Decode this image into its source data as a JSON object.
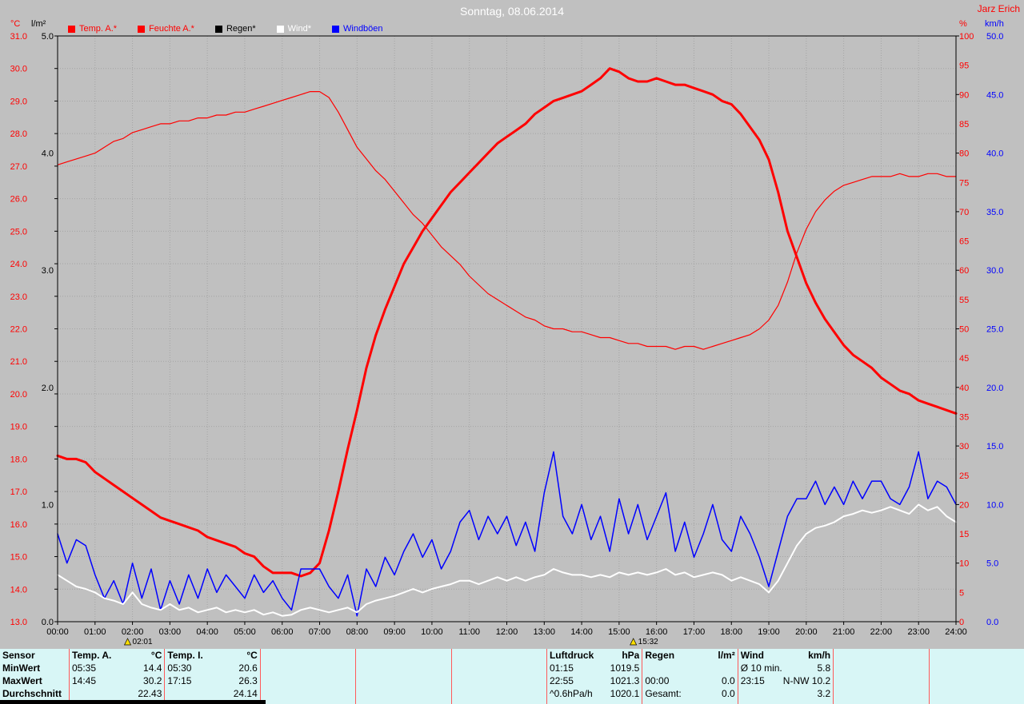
{
  "header": {
    "title": "Sonntag, 08.06.2014",
    "station_user": "Jarz Erich"
  },
  "units": {
    "left_primary": "°C",
    "left_secondary": "l/m²",
    "right_primary": "%",
    "right_secondary": "km/h"
  },
  "legend": [
    {
      "label": "Temp. A.*",
      "color": "#ff0000",
      "text_color": "#ff0000"
    },
    {
      "label": "Feuchte A.*",
      "color": "#ff0000",
      "text_color": "#ff0000"
    },
    {
      "label": "Regen*",
      "color": "#000000",
      "text_color": "#000000"
    },
    {
      "label": "Wind*",
      "color": "#ffffff",
      "text_color": "#ffffff"
    },
    {
      "label": "Windböen",
      "color": "#0000ff",
      "text_color": "#0000ff"
    }
  ],
  "markers": [
    {
      "time": "02:01",
      "hour": 2.02
    },
    {
      "time": "15:32",
      "hour": 15.53
    }
  ],
  "chart_data": {
    "type": "line",
    "title": "Sonntag, 08.06.2014",
    "x_range_hours": [
      0,
      24
    ],
    "x_step_hours": 0.25,
    "x_tick_labels": [
      "00:00",
      "01:00",
      "02:00",
      "03:00",
      "04:00",
      "05:00",
      "06:00",
      "07:00",
      "08:00",
      "09:00",
      "10:00",
      "11:00",
      "12:00",
      "13:00",
      "14:00",
      "15:00",
      "16:00",
      "17:00",
      "18:00",
      "19:00",
      "20:00",
      "21:00",
      "22:00",
      "23:00",
      "24:00"
    ],
    "axes": {
      "temp": {
        "unit": "°C",
        "min": 13,
        "max": 31,
        "step": 1,
        "decimals": 1,
        "color": "#ff0000"
      },
      "rain": {
        "unit": "l/m²",
        "min": 0,
        "max": 5,
        "step": 1,
        "decimals": 1,
        "color": "#000000"
      },
      "hum": {
        "unit": "%",
        "min": 0,
        "max": 100,
        "step": 5,
        "decimals": 0,
        "color": "#ff0000"
      },
      "wind": {
        "unit": "km/h",
        "min": 0,
        "max": 50,
        "step": 5,
        "decimals": 1,
        "color": "#0000ff"
      }
    },
    "series": [
      {
        "name": "Temp. A.",
        "axis": "temp",
        "color": "#ff0000",
        "width": 3,
        "z": 3,
        "values": [
          18.1,
          18.0,
          18.0,
          17.9,
          17.6,
          17.4,
          17.2,
          17.0,
          16.8,
          16.6,
          16.4,
          16.2,
          16.1,
          16.0,
          15.9,
          15.8,
          15.6,
          15.5,
          15.4,
          15.3,
          15.1,
          15.0,
          14.7,
          14.5,
          14.5,
          14.5,
          14.4,
          14.5,
          14.8,
          15.8,
          17.0,
          18.3,
          19.5,
          20.8,
          21.8,
          22.6,
          23.3,
          24.0,
          24.5,
          25.0,
          25.4,
          25.8,
          26.2,
          26.5,
          26.8,
          27.1,
          27.4,
          27.7,
          27.9,
          28.1,
          28.3,
          28.6,
          28.8,
          29.0,
          29.1,
          29.2,
          29.3,
          29.5,
          29.7,
          30.0,
          29.9,
          29.7,
          29.6,
          29.6,
          29.7,
          29.6,
          29.5,
          29.5,
          29.4,
          29.3,
          29.2,
          29.0,
          28.9,
          28.6,
          28.2,
          27.8,
          27.2,
          26.2,
          25.0,
          24.2,
          23.4,
          22.8,
          22.3,
          21.9,
          21.5,
          21.2,
          21.0,
          20.8,
          20.5,
          20.3,
          20.1,
          20.0,
          19.8,
          19.7,
          19.6,
          19.5,
          19.4
        ]
      },
      {
        "name": "Feuchte A.",
        "axis": "hum",
        "color": "#ff0000",
        "width": 1.2,
        "z": 2,
        "values": [
          78,
          78.5,
          79,
          79.5,
          80,
          81,
          82,
          82.5,
          83.5,
          84,
          84.5,
          85,
          85,
          85.5,
          85.5,
          86,
          86,
          86.5,
          86.5,
          87,
          87,
          87.5,
          88,
          88.5,
          89,
          89.5,
          90,
          90.5,
          90.5,
          89.5,
          87,
          84,
          81,
          79,
          77,
          75.5,
          73.5,
          71.5,
          69.5,
          68,
          66,
          64,
          62.5,
          61,
          59,
          57.5,
          56,
          55,
          54,
          53,
          52,
          51.5,
          50.5,
          50,
          50,
          49.5,
          49.5,
          49,
          48.5,
          48.5,
          48,
          47.5,
          47.5,
          47,
          47,
          47,
          46.5,
          47,
          47,
          46.5,
          47,
          47.5,
          48,
          48.5,
          49,
          50,
          51.5,
          54,
          58,
          63,
          67,
          70,
          72,
          73.5,
          74.5,
          75,
          75.5,
          76,
          76,
          76,
          76.5,
          76,
          76,
          76.5,
          76.5,
          76,
          76
        ]
      },
      {
        "name": "Regen",
        "axis": "rain",
        "color": "#000000",
        "width": 1,
        "z": 1,
        "values": [
          0,
          0,
          0,
          0,
          0,
          0,
          0,
          0,
          0,
          0,
          0,
          0,
          0,
          0,
          0,
          0,
          0,
          0,
          0,
          0,
          0,
          0,
          0,
          0,
          0,
          0,
          0,
          0,
          0,
          0,
          0,
          0,
          0,
          0,
          0,
          0,
          0,
          0,
          0,
          0,
          0,
          0,
          0,
          0,
          0,
          0,
          0,
          0,
          0,
          0,
          0,
          0,
          0,
          0,
          0,
          0,
          0,
          0,
          0,
          0,
          0,
          0,
          0,
          0,
          0,
          0,
          0,
          0,
          0,
          0,
          0,
          0,
          0,
          0,
          0,
          0,
          0,
          0,
          0,
          0,
          0,
          0,
          0,
          0,
          0,
          0,
          0,
          0,
          0,
          0,
          0,
          0,
          0,
          0,
          0,
          0,
          0
        ]
      },
      {
        "name": "Wind",
        "axis": "wind",
        "color": "#ffffff",
        "width": 2,
        "z": 5,
        "values": [
          4,
          3.5,
          3,
          2.8,
          2.5,
          2,
          1.8,
          1.5,
          2.5,
          1.5,
          1.2,
          1,
          1.5,
          1,
          1.2,
          0.8,
          1,
          1.2,
          0.8,
          1,
          0.8,
          1,
          0.6,
          0.8,
          0.5,
          0.6,
          1,
          1.2,
          1,
          0.8,
          1,
          1.2,
          0.8,
          1.5,
          1.8,
          2,
          2.2,
          2.5,
          2.8,
          2.5,
          2.8,
          3,
          3.2,
          3.5,
          3.5,
          3.2,
          3.5,
          3.8,
          3.5,
          3.8,
          3.5,
          3.8,
          4,
          4.5,
          4.2,
          4,
          4,
          3.8,
          4,
          3.8,
          4.2,
          4,
          4.2,
          4,
          4.2,
          4.5,
          4,
          4.2,
          3.8,
          4,
          4.2,
          4,
          3.5,
          3.8,
          3.5,
          3.2,
          2.5,
          3.5,
          5,
          6.5,
          7.5,
          8,
          8.2,
          8.5,
          9,
          9.2,
          9.5,
          9.3,
          9.5,
          9.8,
          9.5,
          9.2,
          10,
          9.5,
          9.8,
          9,
          8.5
        ]
      },
      {
        "name": "Windböen",
        "axis": "wind",
        "color": "#0000ff",
        "width": 1.5,
        "z": 4,
        "values": [
          7.5,
          5,
          7,
          6.5,
          4,
          2,
          3.5,
          1.5,
          5,
          2,
          4.5,
          1,
          3.5,
          1.5,
          4,
          2,
          4.5,
          2.5,
          4,
          3,
          2,
          4,
          2.5,
          3.5,
          2,
          1,
          4.5,
          4.5,
          4.5,
          3,
          2,
          4,
          0.5,
          4.5,
          3,
          5.5,
          4,
          6,
          7.5,
          5.5,
          7,
          4.5,
          6,
          8.5,
          9.5,
          7,
          9,
          7.5,
          9,
          6.5,
          8.5,
          6,
          11,
          14.5,
          9,
          7.5,
          10,
          7,
          9,
          6,
          10.5,
          7.5,
          10,
          7,
          9,
          11,
          6,
          8.5,
          5.5,
          7.5,
          10,
          7,
          6,
          9,
          7.5,
          5.5,
          3,
          6,
          9,
          10.5,
          10.5,
          12,
          10,
          11.5,
          10,
          12,
          10.5,
          12,
          12,
          10.5,
          10,
          11.5,
          14.5,
          10.5,
          12,
          11.5,
          10
        ]
      }
    ]
  },
  "table": {
    "row_headers": [
      "Sensor",
      "MinWert",
      "MaxWert",
      "Durchschnitt"
    ],
    "groups": [
      {
        "name": "Temp. A.",
        "unit": "°C",
        "rows": [
          [
            "05:35",
            "14.4"
          ],
          [
            "14:45",
            "30.2"
          ],
          [
            "",
            "22.43"
          ]
        ]
      },
      {
        "name": "Temp. I.",
        "unit": "°C",
        "rows": [
          [
            "05:30",
            "20.6"
          ],
          [
            "17:15",
            "26.3"
          ],
          [
            "",
            "24.14"
          ]
        ]
      },
      {
        "name": "",
        "unit": "",
        "rows": [
          [
            "",
            ""
          ],
          [
            "",
            ""
          ],
          [
            "",
            ""
          ]
        ]
      },
      {
        "name": "",
        "unit": "",
        "rows": [
          [
            "",
            ""
          ],
          [
            "",
            ""
          ],
          [
            "",
            ""
          ]
        ]
      },
      {
        "name": "",
        "unit": "",
        "rows": [
          [
            "",
            ""
          ],
          [
            "",
            ""
          ],
          [
            "",
            ""
          ]
        ]
      },
      {
        "name": "Luftdruck",
        "unit": "hPa",
        "rows": [
          [
            "01:15",
            "1019.5"
          ],
          [
            "22:55",
            "1021.3"
          ],
          [
            "^0.6hPa/h",
            "1020.1"
          ]
        ]
      },
      {
        "name": "Regen",
        "unit": "l/m²",
        "rows": [
          [
            "",
            ""
          ],
          [
            "00:00",
            "0.0"
          ],
          [
            "Gesamt:",
            "0.0"
          ]
        ]
      },
      {
        "name": "Wind",
        "unit": "km/h",
        "rows": [
          [
            "Ø 10 min.",
            "5.8"
          ],
          [
            "23:15",
            "N-NW 10.2"
          ],
          [
            "",
            "3.2"
          ]
        ]
      },
      {
        "name": "",
        "unit": "",
        "rows": [
          [
            "",
            ""
          ],
          [
            "",
            ""
          ],
          [
            "",
            ""
          ]
        ]
      },
      {
        "name": "",
        "unit": "",
        "rows": [
          [
            "",
            ""
          ],
          [
            "",
            ""
          ],
          [
            "",
            ""
          ]
        ]
      }
    ]
  }
}
